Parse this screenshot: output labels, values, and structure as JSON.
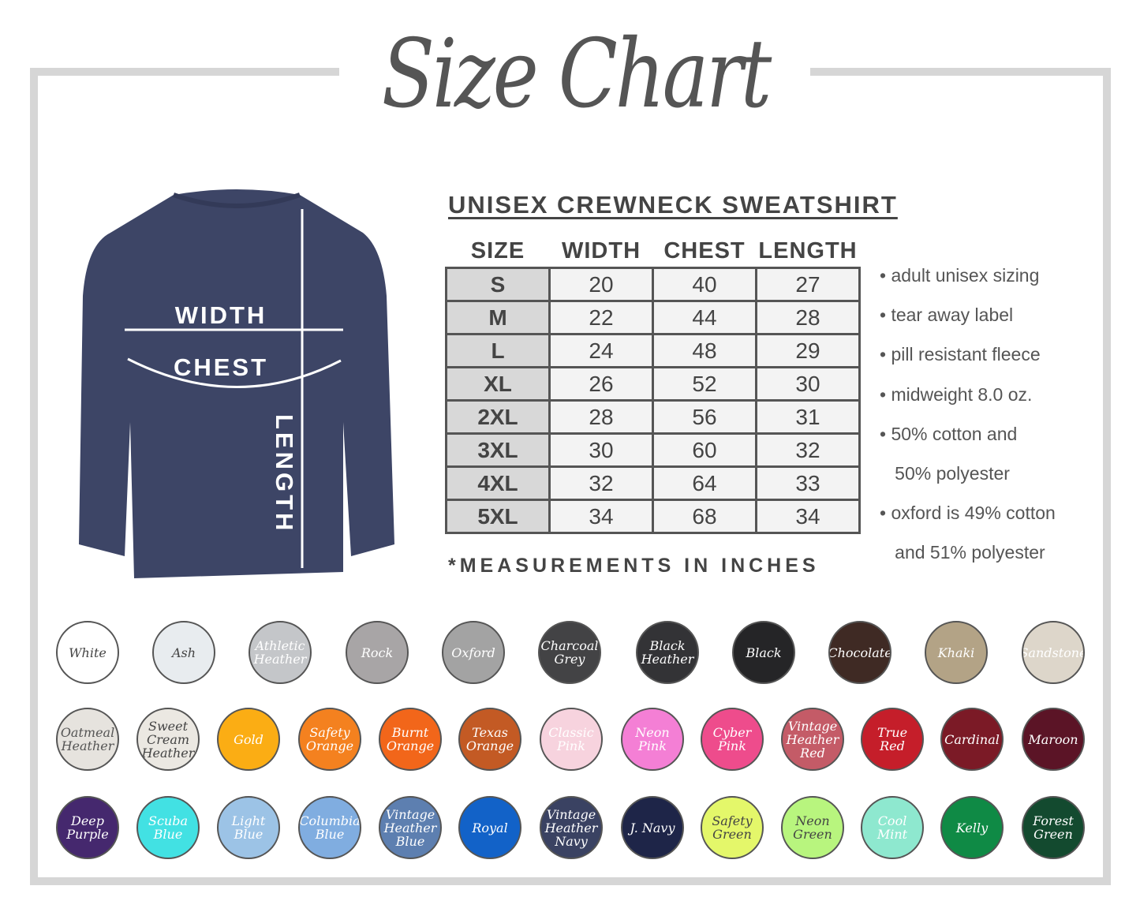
{
  "title": "Size Chart",
  "product": "UNISEX CREWNECK SWEATSHIRT",
  "diagram_labels": {
    "width": "WIDTH",
    "chest": "CHEST",
    "length": "LENGTH"
  },
  "table": {
    "headers": [
      "SIZE",
      "WIDTH",
      "CHEST",
      "LENGTH"
    ],
    "rows": [
      [
        "S",
        "20",
        "40",
        "27"
      ],
      [
        "M",
        "22",
        "44",
        "28"
      ],
      [
        "L",
        "24",
        "48",
        "29"
      ],
      [
        "XL",
        "26",
        "52",
        "30"
      ],
      [
        "2XL",
        "28",
        "56",
        "31"
      ],
      [
        "3XL",
        "30",
        "60",
        "32"
      ],
      [
        "4XL",
        "32",
        "64",
        "33"
      ],
      [
        "5XL",
        "34",
        "68",
        "34"
      ]
    ]
  },
  "note": "*MEASUREMENTS IN INCHES",
  "features": [
    "• adult unisex sizing",
    "• tear away label",
    "• pill resistant fleece",
    "• midweight 8.0 oz.",
    "• 50% cotton and",
    "   50% polyester",
    "• oxford is 49% cotton",
    "   and 51% polyester"
  ],
  "colors": [
    [
      {
        "name": "White",
        "hex": "#ffffff",
        "text": "#444444"
      },
      {
        "name": "Ash",
        "hex": "#e8ecef",
        "text": "#444444"
      },
      {
        "name": "Athletic Heather",
        "hex": "#c4c6c9",
        "text": "#ffffff"
      },
      {
        "name": "Rock",
        "hex": "#a8a5a6",
        "text": "#ffffff"
      },
      {
        "name": "Oxford",
        "hex": "#a3a3a3",
        "text": "#ffffff"
      },
      {
        "name": "Charcoal Grey",
        "hex": "#434345",
        "text": "#ffffff"
      },
      {
        "name": "Black Heather",
        "hex": "#333336",
        "text": "#ffffff"
      },
      {
        "name": "Black",
        "hex": "#252527",
        "text": "#ffffff"
      },
      {
        "name": "Chocolate",
        "hex": "#3f2a24",
        "text": "#ffffff"
      },
      {
        "name": "Khaki",
        "hex": "#b3a386",
        "text": "#ffffff"
      },
      {
        "name": "Sandstone",
        "hex": "#ddd6ca",
        "text": "#ffffff"
      }
    ],
    [
      {
        "name": "Oatmeal Heather",
        "hex": "#e6e3de",
        "text": "#555555"
      },
      {
        "name": "Sweet Cream Heather",
        "hex": "#ebe8e2",
        "text": "#444444"
      },
      {
        "name": "Gold",
        "hex": "#fbad14",
        "text": "#ffffff"
      },
      {
        "name": "Safety Orange",
        "hex": "#f4811f",
        "text": "#ffffff"
      },
      {
        "name": "Burnt Orange",
        "hex": "#f2661a",
        "text": "#ffffff"
      },
      {
        "name": "Texas Orange",
        "hex": "#c35a24",
        "text": "#ffffff"
      },
      {
        "name": "Classic Pink",
        "hex": "#f7d3de",
        "text": "#ffffff"
      },
      {
        "name": "Neon Pink",
        "hex": "#f47fd5",
        "text": "#ffffff"
      },
      {
        "name": "Cyber Pink",
        "hex": "#ee4c8c",
        "text": "#ffffff"
      },
      {
        "name": "Vintage Heather Red",
        "hex": "#c45b67",
        "text": "#ffffff"
      },
      {
        "name": "True Red",
        "hex": "#c51e2a",
        "text": "#ffffff"
      },
      {
        "name": "Cardinal",
        "hex": "#7b1a26",
        "text": "#ffffff"
      },
      {
        "name": "Maroon",
        "hex": "#5b1426",
        "text": "#ffffff"
      }
    ],
    [
      {
        "name": "Deep Purple",
        "hex": "#45286e",
        "text": "#ffffff"
      },
      {
        "name": "Scuba Blue",
        "hex": "#42e1e3",
        "text": "#ffffff"
      },
      {
        "name": "Light Blue",
        "hex": "#9cc3e6",
        "text": "#ffffff"
      },
      {
        "name": "Columbia Blue",
        "hex": "#80ade0",
        "text": "#ffffff"
      },
      {
        "name": "Vintage Heather Blue",
        "hex": "#5d7fb0",
        "text": "#ffffff"
      },
      {
        "name": "Royal",
        "hex": "#1262c8",
        "text": "#ffffff"
      },
      {
        "name": "Vintage Heather Navy",
        "hex": "#3a4262",
        "text": "#ffffff"
      },
      {
        "name": "J. Navy",
        "hex": "#1e2548",
        "text": "#ffffff"
      },
      {
        "name": "Safety Green",
        "hex": "#e4f76a",
        "text": "#444444"
      },
      {
        "name": "Neon Green",
        "hex": "#b8f57e",
        "text": "#444444"
      },
      {
        "name": "Cool Mint",
        "hex": "#8ee8cf",
        "text": "#ffffff"
      },
      {
        "name": "Kelly",
        "hex": "#0f8a45",
        "text": "#ffffff"
      },
      {
        "name": "Forest Green",
        "hex": "#134a2f",
        "text": "#ffffff"
      }
    ]
  ],
  "accent": {
    "frame": "#d6d6d6",
    "text": "#444444",
    "shirt": "#3d4566"
  }
}
